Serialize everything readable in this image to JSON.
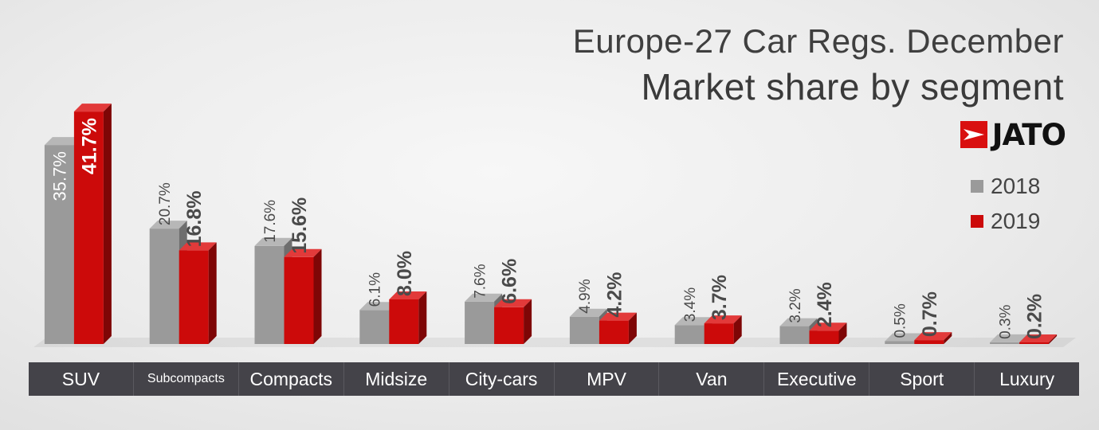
{
  "header": {
    "title": "Europe-27 Car Regs. December",
    "subtitle": "Market share by segment",
    "brand": "JATO"
  },
  "colors": {
    "series_2018": "#9a9a9a",
    "series_2019": "#cc0a0a",
    "category_bar": "#444349"
  },
  "chart_data": {
    "type": "bar",
    "title": "Europe-27 Car Regs. December",
    "subtitle": "Market share by segment",
    "xlabel": "",
    "ylabel": "",
    "grid": false,
    "legend": "right",
    "categories": [
      "SUV",
      "Subcompacts",
      "Compacts",
      "Midsize",
      "City-cars",
      "MPV",
      "Van",
      "Executive",
      "Sport",
      "Luxury"
    ],
    "series": [
      {
        "name": "2018",
        "values": [
          35.7,
          20.7,
          17.6,
          6.1,
          7.6,
          4.9,
          3.4,
          3.2,
          0.5,
          0.3
        ],
        "labels": [
          "35.7%",
          "20.7%",
          "17.6%",
          "6.1%",
          "7.6%",
          "4.9%",
          "3.4%",
          "3.2%",
          "0.5%",
          "0.3%"
        ]
      },
      {
        "name": "2019",
        "values": [
          41.7,
          16.8,
          15.6,
          8.0,
          6.6,
          4.2,
          3.7,
          2.4,
          0.7,
          0.2
        ],
        "labels": [
          "41.7%",
          "16.8%",
          "15.6%",
          "8.0%",
          "6.6%",
          "4.2%",
          "3.7%",
          "2.4%",
          "0.7%",
          "0.2%"
        ]
      }
    ]
  }
}
